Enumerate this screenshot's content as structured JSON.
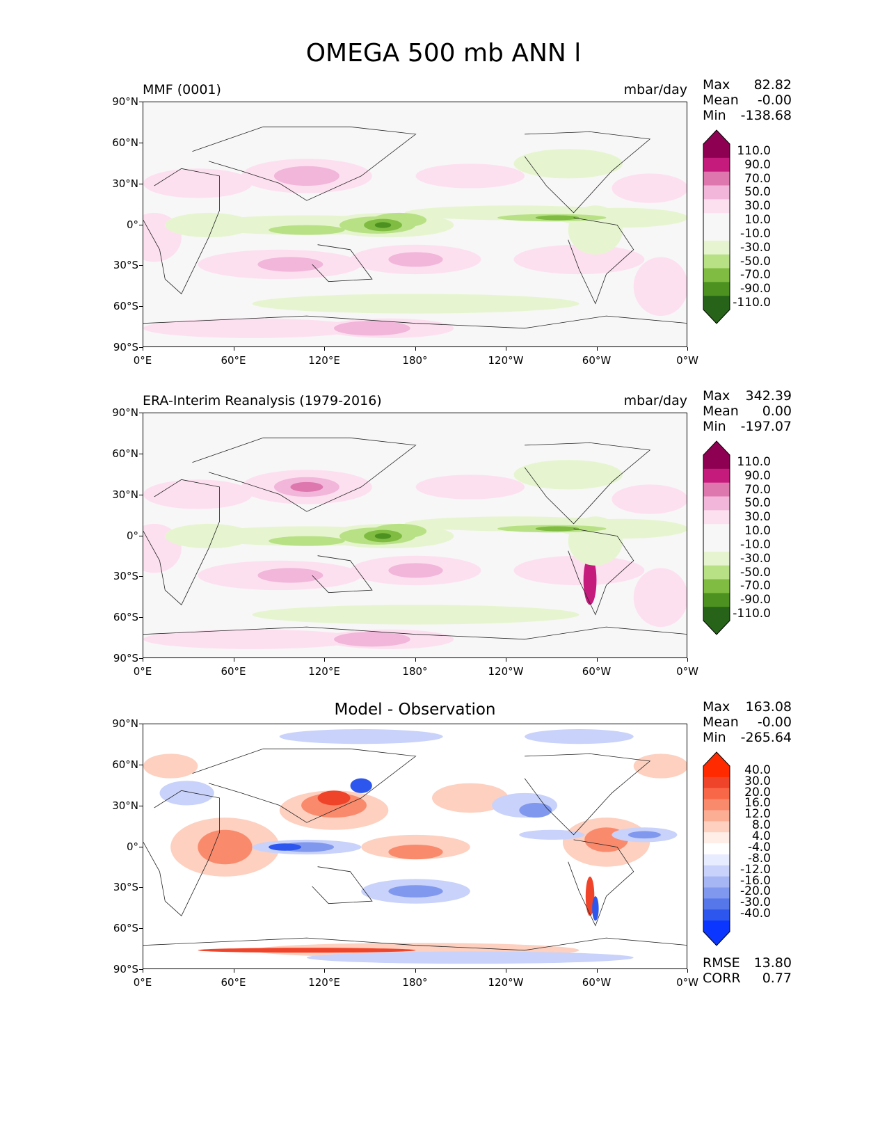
{
  "title": "OMEGA 500 mb ANN l",
  "x_ticks": [
    "0°E",
    "60°E",
    "120°E",
    "180°",
    "120°W",
    "60°W",
    "0°W"
  ],
  "y_ticks": [
    "90°N",
    "60°N",
    "30°N",
    "0°",
    "30°S",
    "60°S",
    "90°S"
  ],
  "chart_data": [
    {
      "type": "heatmap",
      "title": "MMF (0001)",
      "units": "mbar/day",
      "stats": {
        "max_label": "Max",
        "max": "82.82",
        "mean_label": "Mean",
        "mean": "-0.00",
        "min_label": "Min",
        "min": "-138.68"
      },
      "colorbar": {
        "labels": [
          "110.0",
          "90.0",
          "70.0",
          "50.0",
          "30.0",
          "10.0",
          "-10.0",
          "-30.0",
          "-50.0",
          "-70.0",
          "-90.0",
          "-110.0"
        ],
        "colors": [
          "#8e0152",
          "#c51b7d",
          "#de77ae",
          "#f1b6da",
          "#fde0ef",
          "#f7f7f7",
          "#f7f7f7",
          "#e6f5d0",
          "#b8e186",
          "#7fbc41",
          "#4d9221",
          "#276419"
        ],
        "top_color": "#8e0152",
        "bottom_color": "#276419"
      }
    },
    {
      "type": "heatmap",
      "title": "ERA-Interim Reanalysis (1979-2016)",
      "units": "mbar/day",
      "stats": {
        "max_label": "Max",
        "max": "342.39",
        "mean_label": "Mean",
        "mean": "0.00",
        "min_label": "Min",
        "min": "-197.07"
      },
      "colorbar": {
        "labels": [
          "110.0",
          "90.0",
          "70.0",
          "50.0",
          "30.0",
          "10.0",
          "-10.0",
          "-30.0",
          "-50.0",
          "-70.0",
          "-90.0",
          "-110.0"
        ],
        "colors": [
          "#8e0152",
          "#c51b7d",
          "#de77ae",
          "#f1b6da",
          "#fde0ef",
          "#f7f7f7",
          "#f7f7f7",
          "#e6f5d0",
          "#b8e186",
          "#7fbc41",
          "#4d9221",
          "#276419"
        ],
        "top_color": "#8e0152",
        "bottom_color": "#276419"
      }
    },
    {
      "type": "heatmap",
      "title": "Model - Observation",
      "units": "",
      "stats": {
        "max_label": "Max",
        "max": "163.08",
        "mean_label": "Mean",
        "mean": "-0.00",
        "min_label": "Min",
        "min": "-265.64"
      },
      "extra_stats": {
        "rmse_label": "RMSE",
        "rmse": "13.80",
        "corr_label": "CORR",
        "corr": "0.77"
      },
      "colorbar": {
        "labels": [
          "40.0",
          "30.0",
          "20.0",
          "16.0",
          "12.0",
          "8.0",
          "4.0",
          "-4.0",
          "-8.0",
          "-12.0",
          "-16.0",
          "-20.0",
          "-30.0",
          "-40.0"
        ],
        "colors": [
          "#ff2a00",
          "#f0442a",
          "#f86848",
          "#fa8a6c",
          "#fcae94",
          "#fdd0c0",
          "#ffeee8",
          "#ffffff",
          "#e8ecff",
          "#c8d2fa",
          "#a6b6f4",
          "#8098ee",
          "#5677ea",
          "#2c56ee",
          "#0a36ff"
        ],
        "top_color": "#ff2a00",
        "bottom_color": "#0a36ff"
      }
    }
  ]
}
